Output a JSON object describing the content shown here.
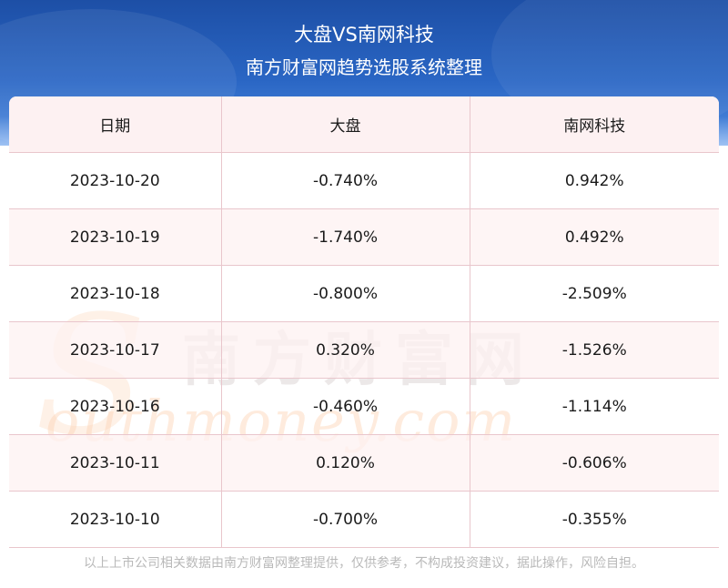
{
  "header": {
    "title": "大盘VS南网科技",
    "subtitle": "南方财富网趋势选股系统整理"
  },
  "table": {
    "columns": [
      "日期",
      "大盘",
      "南网科技"
    ],
    "rows": [
      {
        "date": "2023-10-20",
        "market": "-0.740%",
        "stock": "0.942%"
      },
      {
        "date": "2023-10-19",
        "market": "-1.740%",
        "stock": "0.492%"
      },
      {
        "date": "2023-10-18",
        "market": "-0.800%",
        "stock": "-2.509%"
      },
      {
        "date": "2023-10-17",
        "market": "0.320%",
        "stock": "-1.526%"
      },
      {
        "date": "2023-10-16",
        "market": "-0.460%",
        "stock": "-1.114%"
      },
      {
        "date": "2023-10-11",
        "market": "0.120%",
        "stock": "-0.606%"
      },
      {
        "date": "2023-10-10",
        "market": "-0.700%",
        "stock": "-0.355%"
      }
    ]
  },
  "watermark": {
    "chinese": "南方财富网",
    "english": "outhmoney.com",
    "letter": "S"
  },
  "footer": {
    "disclaimer": "以上上市公司相关数据由南方财富网整理提供，仅供参考，不构成投资建议，据此操作，风险自担。"
  },
  "colors": {
    "banner": "#2a66c4",
    "header_row": "#fdf1f2",
    "grid_line": "#e9c6cc"
  }
}
